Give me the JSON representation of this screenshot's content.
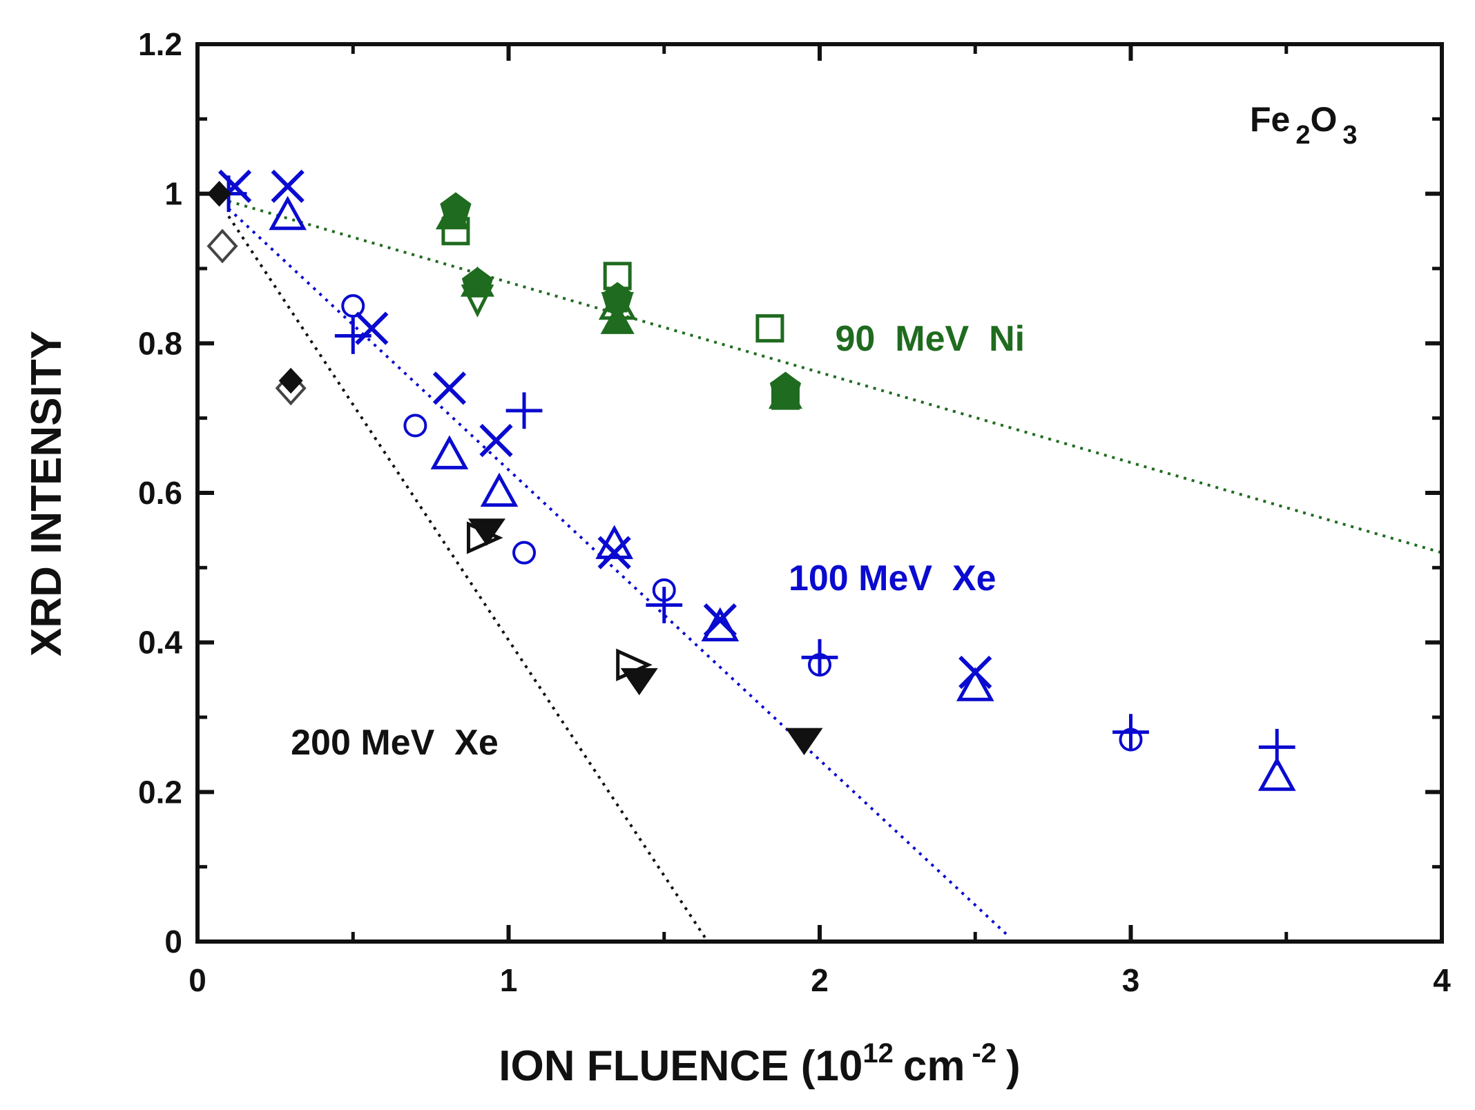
{
  "chart_data": {
    "type": "scatter",
    "title": "",
    "xlabel": "ION FLUENCE (10",
    "xlabel_sup": "12",
    "xlabel_unit": "cm",
    "xlabel_unit_sup": "-2",
    "xlabel_close": ")",
    "ylabel": "XRD INTENSITY",
    "xlim": [
      0,
      4
    ],
    "ylim": [
      0,
      1.2
    ],
    "x_ticks": [
      0,
      1,
      2,
      3,
      4
    ],
    "x_tick_labels": [
      "0",
      "1",
      "2",
      "3",
      "4"
    ],
    "y_ticks": [
      0,
      0.2,
      0.4,
      0.6,
      0.8,
      1,
      1.2
    ],
    "y_tick_labels": [
      "0",
      "0.2",
      "0.4",
      "0.6",
      "0.8",
      "1",
      "1.2"
    ],
    "sample_label": {
      "base": "Fe",
      "sub1": "2",
      "mid": "O",
      "sub2": "3"
    },
    "annotations": [
      {
        "text": "90  MeV  Ni",
        "color": "#1f6b1f",
        "x": 2.05,
        "y": 0.79
      },
      {
        "text": "100 MeV  Xe",
        "color": "#0a0ad0",
        "x": 1.9,
        "y": 0.47
      },
      {
        "text": "200 MeV  Xe",
        "color": "#111111",
        "x": 0.3,
        "y": 0.25
      }
    ],
    "fit_lines": [
      {
        "name": "90 MeV Ni fit",
        "color": "#1f6b1f",
        "x": [
          0.1,
          4.0
        ],
        "y": [
          0.99,
          0.52
        ]
      },
      {
        "name": "100 MeV Xe fit",
        "color": "#0a0ad0",
        "x": [
          0.1,
          2.6
        ],
        "y": [
          0.98,
          0.01
        ]
      },
      {
        "name": "200 MeV Xe fit",
        "color": "#111111",
        "x": [
          0.1,
          1.64
        ],
        "y": [
          0.97,
          0.0
        ]
      }
    ],
    "series": [
      {
        "name": "90 MeV Ni (filled pentagon)",
        "color": "#1f6b1f",
        "marker": "pentagon-filled",
        "x": [
          0.83,
          0.9,
          1.35,
          1.89
        ],
        "y": [
          0.98,
          0.88,
          0.86,
          0.74
        ]
      },
      {
        "name": "90 MeV Ni (filled triangle)",
        "color": "#1f6b1f",
        "marker": "triangle-up-filled",
        "x": [
          0.82,
          0.9,
          1.35,
          1.89
        ],
        "y": [
          0.97,
          0.88,
          0.83,
          0.73
        ]
      },
      {
        "name": "90 MeV Ni (open square)",
        "color": "#1f6b1f",
        "marker": "square-open",
        "x": [
          0.83,
          1.35,
          1.84,
          1.89
        ],
        "y": [
          0.95,
          0.89,
          0.82,
          0.73
        ]
      },
      {
        "name": "90 MeV Ni (open triangle down)",
        "color": "#1f6b1f",
        "marker": "triangle-down-open",
        "x": [
          0.9,
          1.35
        ],
        "y": [
          0.86,
          0.85
        ]
      },
      {
        "name": "90 MeV Ni (open triangle up)",
        "color": "#1f6b1f",
        "marker": "triangle-up-open",
        "x": [
          1.35
        ],
        "y": [
          0.85
        ]
      },
      {
        "name": "100 MeV Xe (x)",
        "color": "#0a0ad0",
        "marker": "x",
        "x": [
          0.12,
          0.29,
          0.56,
          0.81,
          0.96,
          1.34,
          1.68,
          2.5
        ],
        "y": [
          1.01,
          1.01,
          0.82,
          0.74,
          0.67,
          0.52,
          0.43,
          0.36
        ]
      },
      {
        "name": "100 MeV Xe (open triangle)",
        "color": "#0a0ad0",
        "marker": "triangle-up-open",
        "x": [
          0.29,
          0.81,
          0.97,
          1.34,
          1.68,
          2.5,
          3.47
        ],
        "y": [
          0.97,
          0.65,
          0.6,
          0.53,
          0.42,
          0.34,
          0.22
        ]
      },
      {
        "name": "100 MeV Xe (plus)",
        "color": "#0a0ad0",
        "marker": "plus",
        "x": [
          0.1,
          0.5,
          1.05,
          1.5,
          2.0,
          3.0,
          3.47
        ],
        "y": [
          1.0,
          0.81,
          0.71,
          0.45,
          0.38,
          0.28,
          0.26
        ]
      },
      {
        "name": "100 MeV Xe (open circle)",
        "color": "#0a0ad0",
        "marker": "circle-open",
        "x": [
          0.5,
          0.7,
          1.05,
          1.5,
          2.0,
          3.0
        ],
        "y": [
          0.85,
          0.69,
          0.52,
          0.47,
          0.37,
          0.27
        ]
      },
      {
        "name": "200 MeV Xe (open diamond)",
        "color": "#444444",
        "marker": "diamond-open",
        "x": [
          0.08,
          0.3
        ],
        "y": [
          0.93,
          0.74
        ]
      },
      {
        "name": "200 MeV Xe (filled diamond)",
        "color": "#111111",
        "marker": "diamond-filled",
        "x": [
          0.07,
          0.3
        ],
        "y": [
          1.0,
          0.75
        ]
      },
      {
        "name": "200 MeV Xe (filled triangle down)",
        "color": "#111111",
        "marker": "triangle-down-filled",
        "x": [
          0.93,
          1.42,
          1.95
        ],
        "y": [
          0.55,
          0.35,
          0.27
        ]
      },
      {
        "name": "200 MeV Xe (open triangle right)",
        "color": "#111111",
        "marker": "triangle-right-open",
        "x": [
          0.92,
          1.4
        ],
        "y": [
          0.54,
          0.37
        ]
      }
    ]
  }
}
